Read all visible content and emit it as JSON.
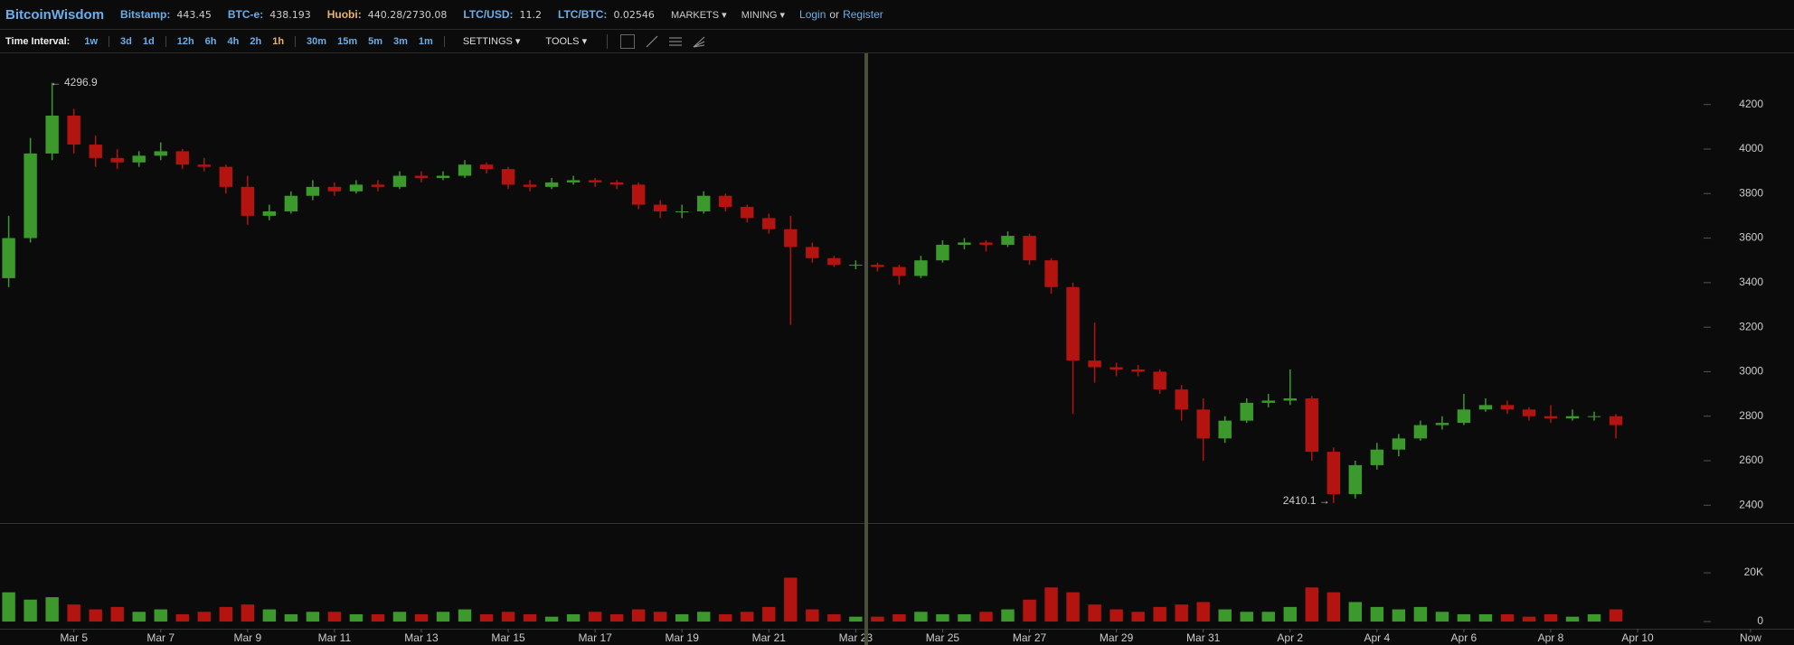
{
  "header": {
    "brand": "BitcoinWisdom",
    "tickers": [
      {
        "label": "Bitstamp:",
        "price": "443.45"
      },
      {
        "label": "BTC-e:",
        "price": "438.193"
      },
      {
        "label": "Huobi:",
        "price": "440.28/2730.08"
      },
      {
        "label": "LTC/USD:",
        "price": "11.2"
      },
      {
        "label": "LTC/BTC:",
        "price": "0.02546"
      }
    ],
    "menus": [
      "MARKETS",
      "MINING"
    ],
    "login": "Login",
    "or": "or",
    "register": "Register"
  },
  "toolbar": {
    "label": "Time Interval:",
    "intervals": [
      [
        "1w"
      ],
      [
        "3d",
        "1d"
      ],
      [
        "12h",
        "6h",
        "4h",
        "2h",
        "1h"
      ],
      [
        "30m",
        "15m",
        "5m",
        "3m",
        "1m"
      ]
    ],
    "active": "1h",
    "menus": [
      "SETTINGS",
      "TOOLS"
    ]
  },
  "chart_data": {
    "type": "candlestick",
    "up_color": "#3c9a2c",
    "down_color": "#b3140f",
    "xlim": [
      3.3,
      44.6
    ],
    "xticks": [
      {
        "value": 5,
        "label": "Mar 5"
      },
      {
        "value": 7,
        "label": "Mar 7"
      },
      {
        "value": 9,
        "label": "Mar 9"
      },
      {
        "value": 11,
        "label": "Mar 11"
      },
      {
        "value": 13,
        "label": "Mar 13"
      },
      {
        "value": 15,
        "label": "Mar 15"
      },
      {
        "value": 17,
        "label": "Mar 17"
      },
      {
        "value": 19,
        "label": "Mar 19"
      },
      {
        "value": 21,
        "label": "Mar 21"
      },
      {
        "value": 23,
        "label": "Mar 23"
      },
      {
        "value": 25,
        "label": "Mar 25"
      },
      {
        "value": 27,
        "label": "Mar 27"
      },
      {
        "value": 29,
        "label": "Mar 29"
      },
      {
        "value": 31,
        "label": "Mar 31"
      },
      {
        "value": 33,
        "label": "Apr 2"
      },
      {
        "value": 35,
        "label": "Apr 4"
      },
      {
        "value": 37,
        "label": "Apr 6"
      },
      {
        "value": 39,
        "label": "Apr 8"
      },
      {
        "value": 41,
        "label": "Apr 10"
      },
      {
        "value": 43.6,
        "label": "Now"
      }
    ],
    "ylim": [
      2320,
      4430
    ],
    "yticks": [
      2400,
      2600,
      2800,
      3000,
      3200,
      3400,
      3600,
      3800,
      4000,
      4200
    ],
    "y2lim": [
      -2200,
      40400
    ],
    "y2ticks": [
      0,
      {
        "value": 20000,
        "label": "20K"
      }
    ],
    "candles": [
      [
        3.5,
        3420,
        3700,
        3380,
        3600
      ],
      [
        4,
        3600,
        4050,
        3580,
        3980
      ],
      [
        4.5,
        3980,
        4296.9,
        3950,
        4150
      ],
      [
        5,
        4150,
        4180,
        3980,
        4020
      ],
      [
        5.5,
        4020,
        4060,
        3920,
        3960
      ],
      [
        6,
        3960,
        4000,
        3910,
        3940
      ],
      [
        6.5,
        3940,
        3990,
        3920,
        3970
      ],
      [
        7,
        3970,
        4030,
        3950,
        3990
      ],
      [
        7.5,
        3990,
        4000,
        3910,
        3930
      ],
      [
        8,
        3930,
        3960,
        3900,
        3920
      ],
      [
        8.5,
        3920,
        3930,
        3800,
        3830
      ],
      [
        9,
        3830,
        3880,
        3660,
        3700
      ],
      [
        9.5,
        3700,
        3750,
        3680,
        3720
      ],
      [
        10,
        3720,
        3810,
        3710,
        3790
      ],
      [
        10.5,
        3790,
        3860,
        3770,
        3830
      ],
      [
        11,
        3830,
        3850,
        3790,
        3810
      ],
      [
        11.5,
        3810,
        3860,
        3800,
        3840
      ],
      [
        12,
        3840,
        3860,
        3810,
        3830
      ],
      [
        12.5,
        3830,
        3900,
        3820,
        3880
      ],
      [
        13,
        3880,
        3900,
        3850,
        3870
      ],
      [
        13.5,
        3870,
        3900,
        3860,
        3880
      ],
      [
        14,
        3880,
        3950,
        3870,
        3930
      ],
      [
        14.5,
        3930,
        3940,
        3890,
        3910
      ],
      [
        15,
        3910,
        3920,
        3820,
        3840
      ],
      [
        15.5,
        3840,
        3860,
        3810,
        3830
      ],
      [
        16,
        3830,
        3870,
        3820,
        3850
      ],
      [
        16.5,
        3850,
        3880,
        3840,
        3860
      ],
      [
        17,
        3860,
        3870,
        3830,
        3850
      ],
      [
        17.5,
        3850,
        3860,
        3820,
        3840
      ],
      [
        18,
        3840,
        3850,
        3730,
        3750
      ],
      [
        18.5,
        3750,
        3770,
        3690,
        3720
      ],
      [
        19,
        3720,
        3750,
        3690,
        3720
      ],
      [
        19.5,
        3720,
        3810,
        3710,
        3790
      ],
      [
        20,
        3790,
        3800,
        3720,
        3740
      ],
      [
        20.5,
        3740,
        3750,
        3670,
        3690
      ],
      [
        21,
        3690,
        3710,
        3620,
        3640
      ],
      [
        21.5,
        3640,
        3700,
        3210,
        3560
      ],
      [
        22,
        3560,
        3580,
        3490,
        3510
      ],
      [
        22.5,
        3510,
        3520,
        3470,
        3480
      ],
      [
        23,
        3480,
        3500,
        3460,
        3480
      ],
      [
        23.5,
        3480,
        3490,
        3450,
        3470
      ],
      [
        24,
        3470,
        3480,
        3390,
        3430
      ],
      [
        24.5,
        3430,
        3520,
        3420,
        3500
      ],
      [
        25,
        3500,
        3590,
        3490,
        3570
      ],
      [
        25.5,
        3570,
        3600,
        3550,
        3580
      ],
      [
        26,
        3580,
        3590,
        3540,
        3570
      ],
      [
        26.5,
        3570,
        3630,
        3560,
        3610
      ],
      [
        27,
        3610,
        3620,
        3480,
        3500
      ],
      [
        27.5,
        3500,
        3510,
        3350,
        3380
      ],
      [
        28,
        3380,
        3400,
        2810,
        3050
      ],
      [
        28.5,
        3050,
        3220,
        2950,
        3020
      ],
      [
        29,
        3020,
        3040,
        2980,
        3010
      ],
      [
        29.5,
        3010,
        3030,
        2980,
        3000
      ],
      [
        30,
        3000,
        3010,
        2900,
        2920
      ],
      [
        30.5,
        2920,
        2940,
        2780,
        2830
      ],
      [
        31,
        2830,
        2880,
        2600,
        2700
      ],
      [
        31.5,
        2700,
        2800,
        2680,
        2780
      ],
      [
        32,
        2780,
        2880,
        2770,
        2860
      ],
      [
        32.5,
        2860,
        2900,
        2840,
        2870
      ],
      [
        33,
        2870,
        3010,
        2850,
        2880
      ],
      [
        33.5,
        2880,
        2890,
        2600,
        2640
      ],
      [
        34,
        2640,
        2660,
        2410.1,
        2450
      ],
      [
        34.5,
        2450,
        2600,
        2430,
        2580
      ],
      [
        35,
        2580,
        2680,
        2560,
        2650
      ],
      [
        35.5,
        2650,
        2720,
        2620,
        2700
      ],
      [
        36,
        2700,
        2780,
        2690,
        2760
      ],
      [
        36.5,
        2760,
        2800,
        2740,
        2770
      ],
      [
        37,
        2770,
        2900,
        2760,
        2830
      ],
      [
        37.5,
        2830,
        2880,
        2820,
        2850
      ],
      [
        38,
        2850,
        2870,
        2810,
        2830
      ],
      [
        38.5,
        2830,
        2840,
        2780,
        2800
      ],
      [
        39,
        2800,
        2850,
        2770,
        2790
      ],
      [
        39.5,
        2790,
        2830,
        2780,
        2800
      ],
      [
        40,
        2800,
        2820,
        2780,
        2800
      ],
      [
        40.5,
        2800,
        2810,
        2700,
        2760
      ]
    ],
    "volume": [
      12000,
      9000,
      10000,
      7000,
      5000,
      6000,
      4000,
      5000,
      3000,
      4000,
      6000,
      7000,
      5000,
      3000,
      4000,
      4000,
      3000,
      3000,
      4000,
      3000,
      4000,
      5000,
      3000,
      4000,
      3000,
      2000,
      3000,
      4000,
      3000,
      5000,
      4000,
      3000,
      4000,
      3000,
      4000,
      6000,
      18000,
      5000,
      3000,
      2000,
      2000,
      3000,
      4000,
      3000,
      3000,
      4000,
      5000,
      9000,
      14000,
      12000,
      7000,
      5000,
      4000,
      6000,
      7000,
      8000,
      5000,
      4000,
      4000,
      6000,
      14000,
      12000,
      8000,
      6000,
      5000,
      6000,
      4000,
      3000,
      3000,
      3000,
      2000,
      3000,
      2000,
      3000,
      5000
    ],
    "high_label": {
      "x": 4.5,
      "value": 4296.9,
      "label": "← 4296.9"
    },
    "low_label": {
      "x": 34,
      "value": 2410.1,
      "label": "2410.1 →"
    }
  }
}
